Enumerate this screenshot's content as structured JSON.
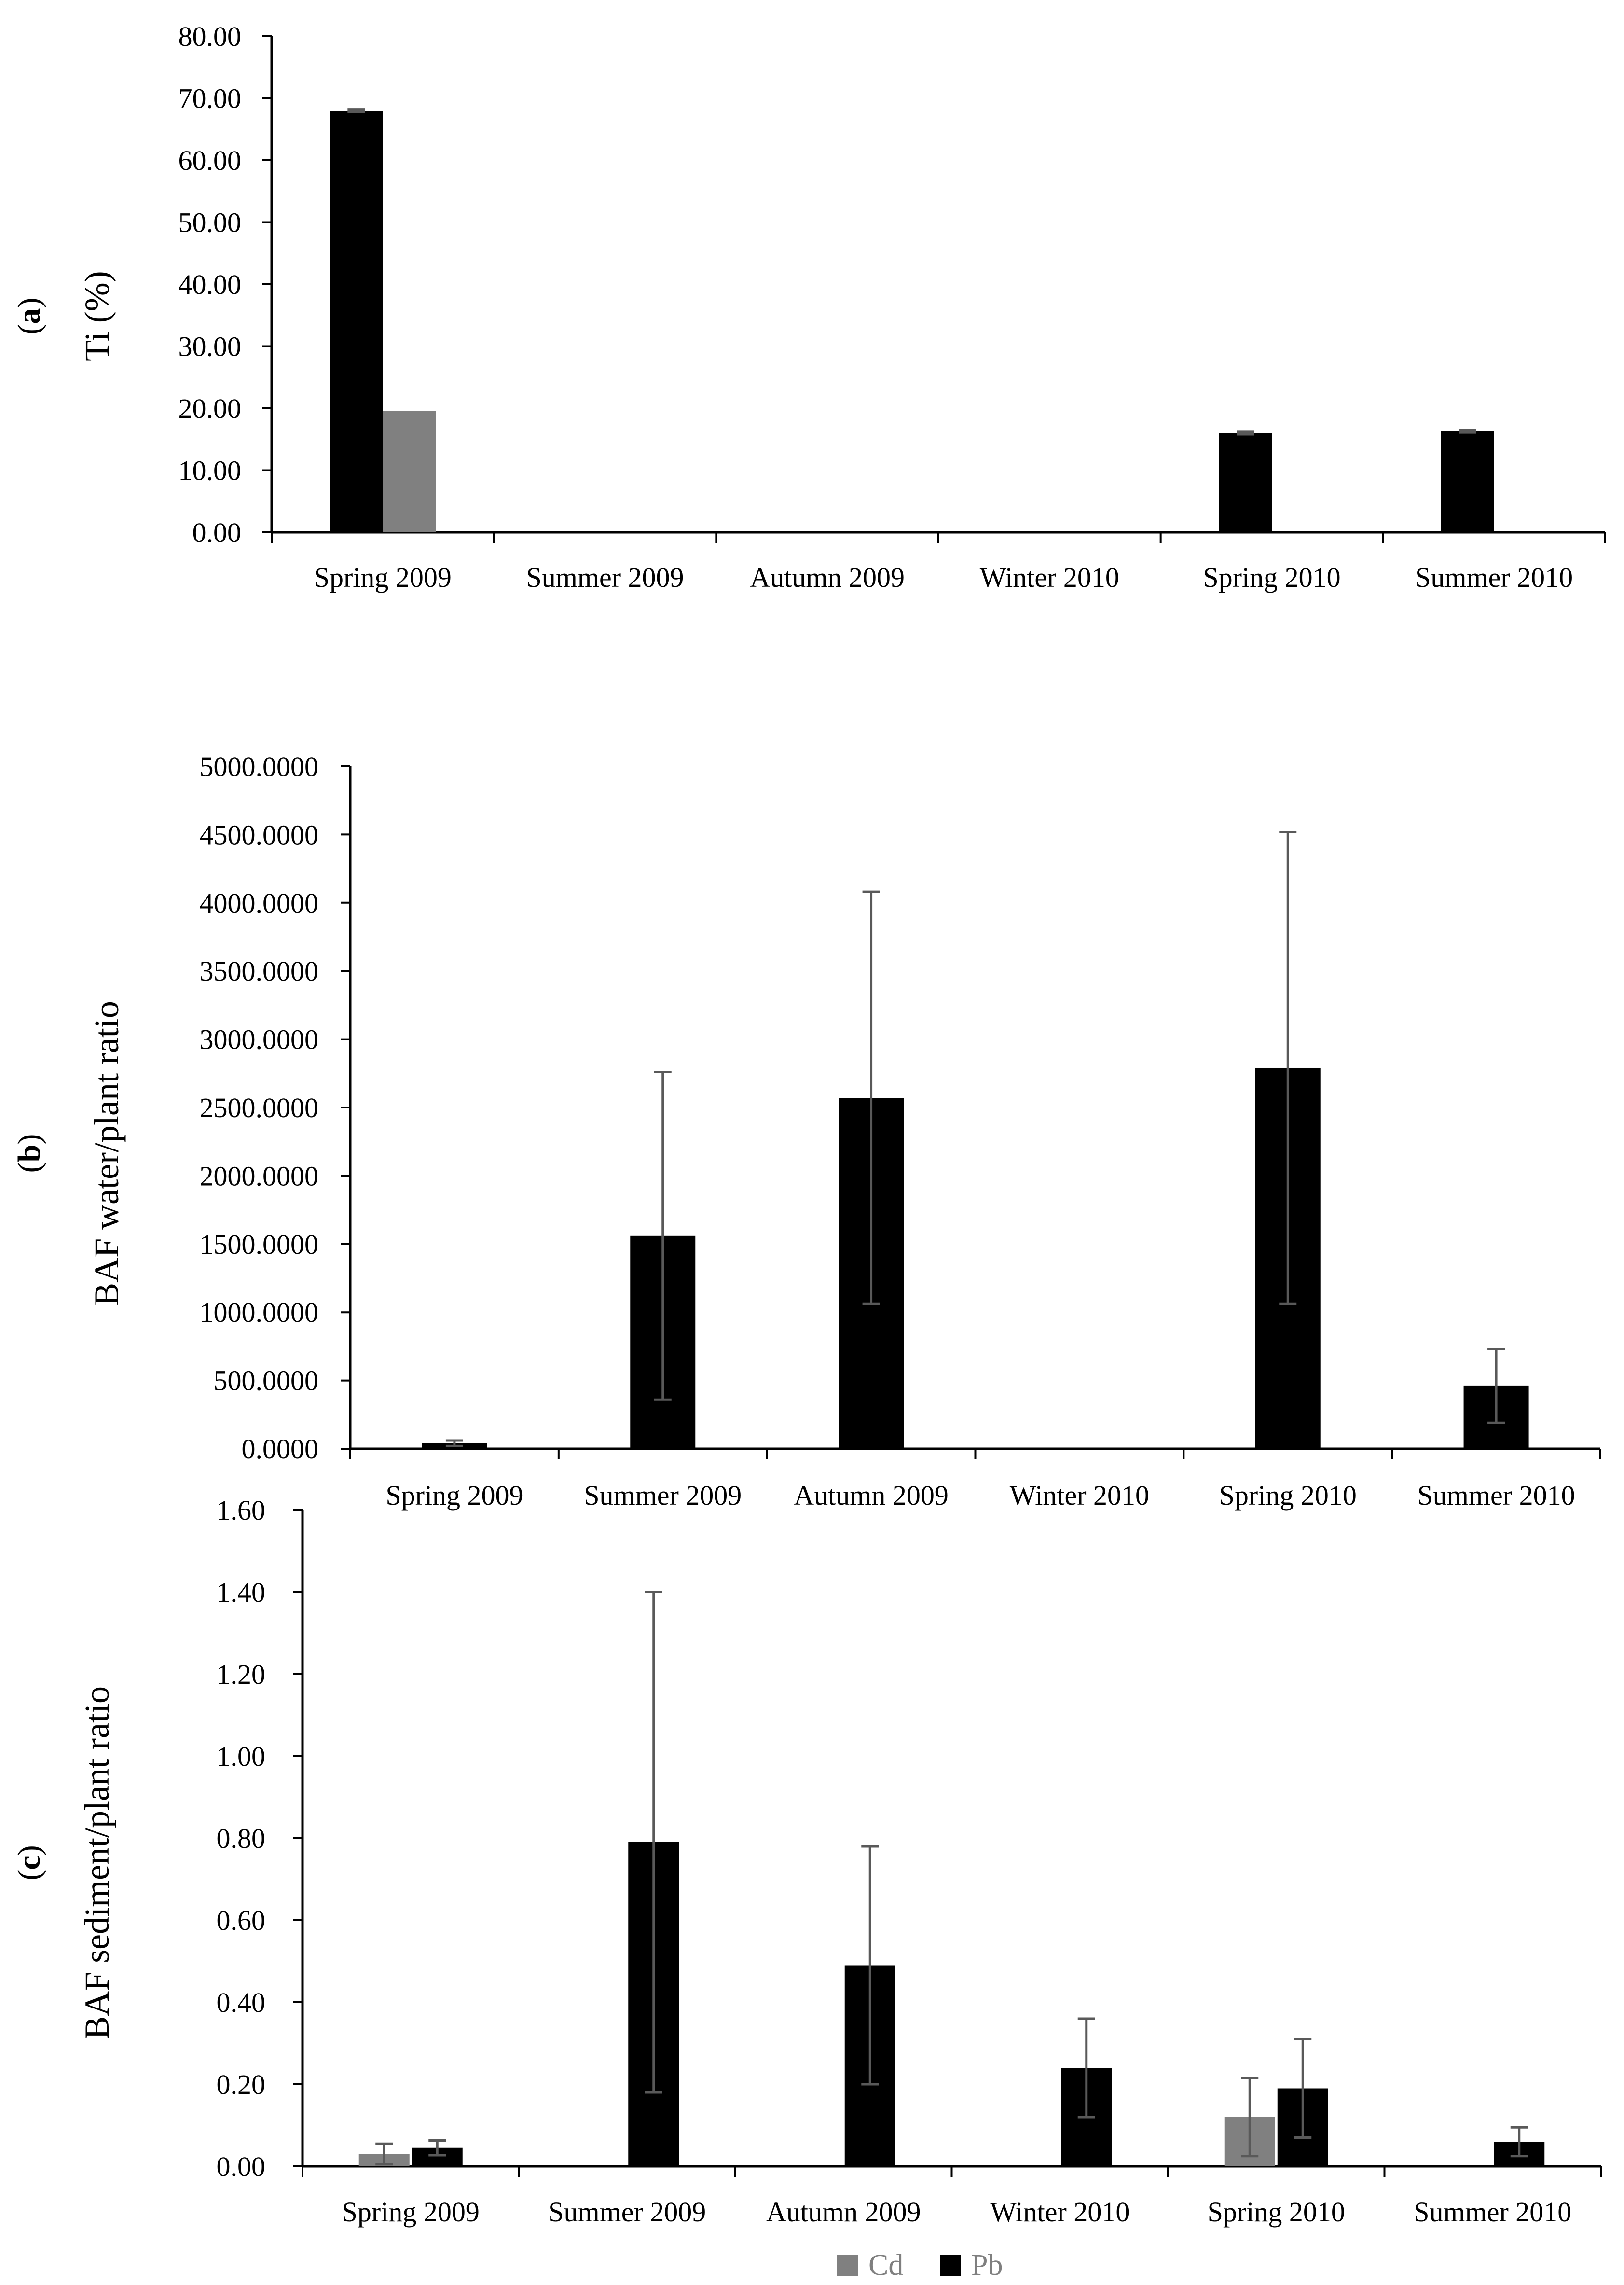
{
  "legend": [
    {
      "name": "Cd",
      "color": "#808080"
    },
    {
      "name": "Pb",
      "color": "#000000"
    }
  ],
  "colors": {
    "cd": "#808080",
    "pb": "#000000",
    "error_bar": "#595959",
    "axis": "#000000"
  },
  "chart_data": [
    {
      "type": "bar",
      "panel": "(a)",
      "ylabel": "Ti (%)",
      "xlabel": "",
      "categories": [
        "Spring 2009",
        "Summer 2009",
        "Autumn 2009",
        "Winter 2010",
        "Spring 2010",
        "Summer 2010"
      ],
      "ylim": [
        0,
        80
      ],
      "yticks": [
        0,
        10,
        20,
        30,
        40,
        50,
        60,
        70,
        80
      ],
      "ytick_labels": [
        "0.00",
        "10.00",
        "20.00",
        "30.00",
        "40.00",
        "50.00",
        "60.00",
        "70.00",
        "80.00"
      ],
      "series": [
        {
          "name": "Pb",
          "values": [
            68.0,
            0,
            0,
            0,
            16.0,
            16.3
          ],
          "errors": [
            0.2,
            0,
            0,
            0,
            0.2,
            0.2
          ]
        },
        {
          "name": "Cd",
          "values": [
            19.6,
            0,
            0,
            0,
            0,
            0
          ],
          "errors": [
            0,
            0,
            0,
            0,
            0,
            0
          ]
        }
      ]
    },
    {
      "type": "bar",
      "panel": "(b)",
      "ylabel": "BAF water/plant ratio",
      "xlabel": "",
      "categories": [
        "Spring 2009",
        "Summer 2009",
        "Autumn 2009",
        "Winter 2010",
        "Spring 2010",
        "Summer 2010"
      ],
      "ylim": [
        0,
        5000
      ],
      "yticks": [
        0,
        500,
        1000,
        1500,
        2000,
        2500,
        3000,
        3500,
        4000,
        4500,
        5000
      ],
      "ytick_labels": [
        "0.0000",
        "500.0000",
        "1000.0000",
        "1500.0000",
        "2000.0000",
        "2500.0000",
        "3000.0000",
        "3500.0000",
        "4000.0000",
        "4500.0000",
        "5000.0000"
      ],
      "series": [
        {
          "name": "Pb",
          "values": [
            40,
            1560,
            2570,
            0,
            2790,
            460
          ],
          "errors": [
            20,
            1200,
            1510,
            0,
            1730,
            270
          ]
        }
      ]
    },
    {
      "type": "bar",
      "panel": "(c)",
      "ylabel": "BAF sediment/plant ratio",
      "xlabel": "",
      "categories": [
        "Spring 2009",
        "Summer 2009",
        "Autumn 2009",
        "Winter 2010",
        "Spring 2010",
        "Summer 2010"
      ],
      "ylim": [
        0,
        1.6
      ],
      "yticks": [
        0,
        0.2,
        0.4,
        0.6,
        0.8,
        1.0,
        1.2,
        1.4,
        1.6
      ],
      "ytick_labels": [
        "0.00",
        "0.20",
        "0.40",
        "0.60",
        "0.80",
        "1.00",
        "1.20",
        "1.40",
        "1.60"
      ],
      "series": [
        {
          "name": "Cd",
          "values": [
            0.03,
            0,
            0,
            0,
            0.12,
            0
          ],
          "errors": [
            0.025,
            0,
            0,
            0,
            0.095,
            0
          ]
        },
        {
          "name": "Pb",
          "values": [
            0.045,
            0.79,
            0.49,
            0.24,
            0.19,
            0.06
          ],
          "errors": [
            0.018,
            0.61,
            0.29,
            0.12,
            0.12,
            0.035
          ]
        }
      ]
    }
  ]
}
